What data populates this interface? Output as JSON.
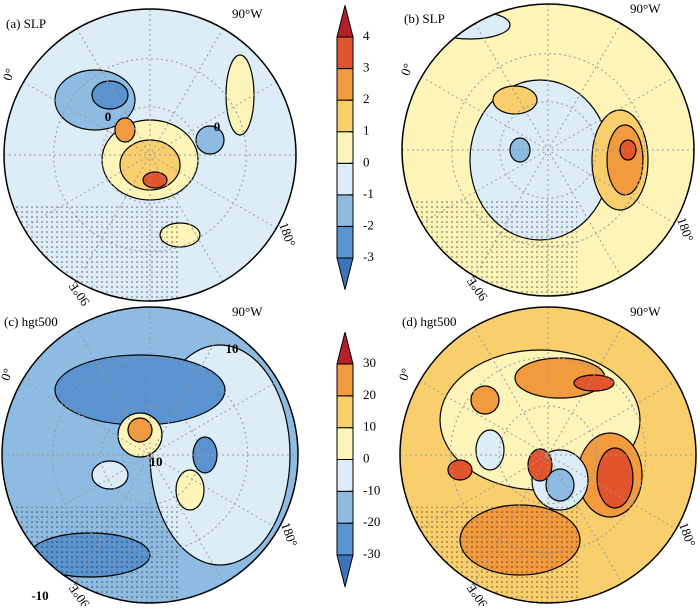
{
  "panels": [
    {
      "label": "(a) SLP",
      "lon_labels": {
        "top": "90°W",
        "left": "0°",
        "right": "180°",
        "bottom": "90°E"
      },
      "contour_labels": [
        "0",
        "0"
      ]
    },
    {
      "label": "(b) SLP",
      "lon_labels": {
        "top": "90°W",
        "left": "0°",
        "right": "180°",
        "bottom": "90°E"
      },
      "contour_labels": []
    },
    {
      "label": "(c) hgt500",
      "lon_labels": {
        "top": "90°W",
        "left": "0°",
        "right": "180°",
        "bottom": "90°E"
      },
      "contour_labels": [
        "10",
        "10",
        "-10"
      ]
    },
    {
      "label": "(d) hgt500",
      "lon_labels": {
        "top": "90°W",
        "left": "0°",
        "right": "180°",
        "bottom": "90°E"
      },
      "contour_labels": []
    }
  ],
  "colorbars": [
    {
      "ticks": [
        -3,
        -2,
        -1,
        0,
        1,
        2,
        3,
        4
      ],
      "colors": [
        "#3a74bd",
        "#5a93d0",
        "#8dbbe2",
        "#dcedf8",
        "#fdf4b8",
        "#f9cf6e",
        "#f29a3e",
        "#e2552c",
        "#b3202a"
      ]
    },
    {
      "ticks": [
        -30,
        -20,
        -10,
        0,
        10,
        20,
        30
      ],
      "colors": [
        "#3a74bd",
        "#5a93d0",
        "#8dbbe2",
        "#dcedf8",
        "#fdf4b8",
        "#f9cf6e",
        "#f29a3e",
        "#b3202a"
      ]
    }
  ]
}
